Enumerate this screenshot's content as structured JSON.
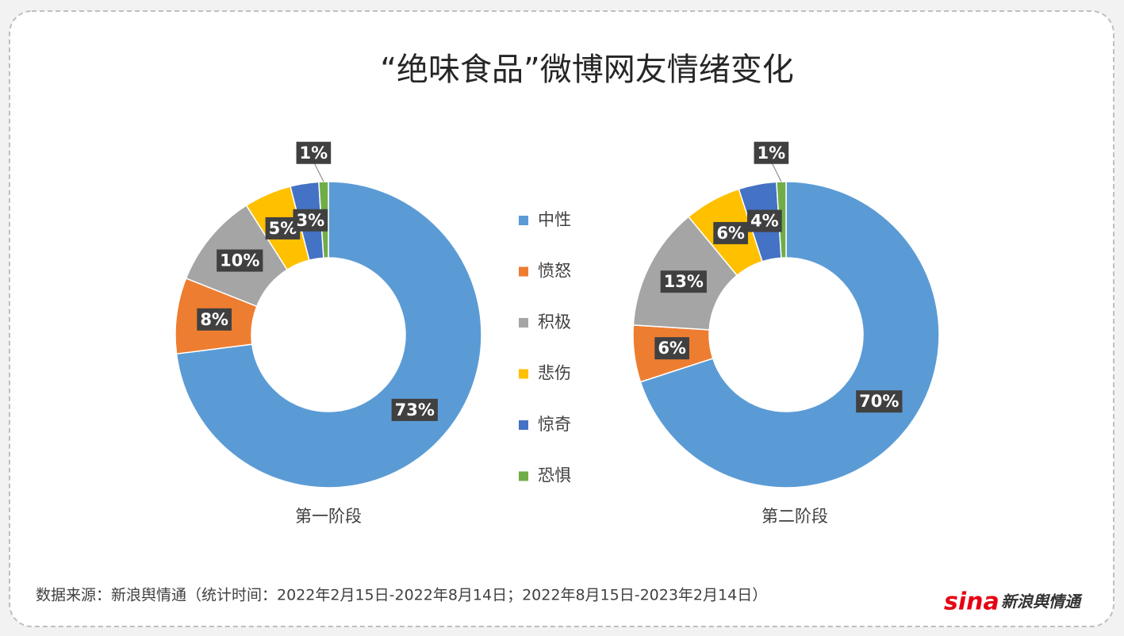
{
  "title": "“绝味食品”微博网友情绪变化",
  "source": "数据来源：新浪舆情通（统计时间：2022年2月15日-2022年8月14日；2022年8月15日-2023年2月14日）",
  "logo_brand": "sina",
  "logo_text": "新浪舆情通",
  "chart_data": [
    {
      "type": "donut",
      "label": "第一阶段",
      "categories": [
        "中性",
        "愤怒",
        "积极",
        "悲伤",
        "惊奇",
        "恐惧"
      ],
      "values": [
        73,
        8,
        10,
        5,
        3,
        1
      ],
      "value_labels": [
        "73%",
        "8%",
        "10%",
        "5%",
        "3%",
        "1%"
      ],
      "colors": [
        "#5b9bd5",
        "#ed7d31",
        "#a5a5a5",
        "#ffc000",
        "#4472c4",
        "#70ad47"
      ]
    },
    {
      "type": "donut",
      "label": "第二阶段",
      "categories": [
        "中性",
        "愤怒",
        "积极",
        "悲伤",
        "惊奇",
        "恐惧"
      ],
      "values": [
        70,
        6,
        13,
        6,
        4,
        1
      ],
      "value_labels": [
        "70%",
        "6%",
        "13%",
        "6%",
        "4%",
        "1%"
      ],
      "colors": [
        "#5b9bd5",
        "#ed7d31",
        "#a5a5a5",
        "#ffc000",
        "#4472c4",
        "#70ad47"
      ]
    }
  ]
}
